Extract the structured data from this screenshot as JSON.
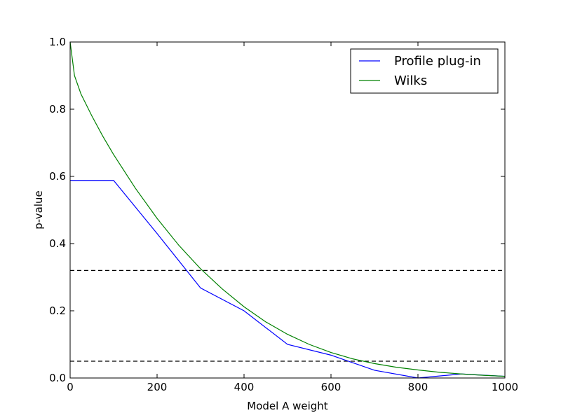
{
  "chart_data": {
    "type": "line",
    "title": "",
    "xlabel": "Model A weight",
    "ylabel": "p-value",
    "xlim": [
      0,
      1000
    ],
    "ylim": [
      0,
      1.0
    ],
    "xticks": [
      0,
      200,
      400,
      600,
      800,
      1000
    ],
    "xtick_labels": [
      "0",
      "200",
      "400",
      "600",
      "800",
      "1000"
    ],
    "yticks": [
      0,
      0.2,
      0.4,
      0.6,
      0.8,
      1.0
    ],
    "ytick_labels": [
      "0.0",
      "0.2",
      "0.4",
      "0.6",
      "0.8",
      "1.0"
    ],
    "grid": false,
    "legend_position": "top-right",
    "series": [
      {
        "name": "Profile plug-in",
        "color": "#0000ff",
        "x": [
          0,
          100,
          200,
          300,
          400,
          500,
          600,
          700,
          800,
          900,
          1000
        ],
        "y": [
          0.588,
          0.588,
          0.43,
          0.268,
          0.2,
          0.1,
          0.068,
          0.023,
          0.0,
          0.012,
          0.005
        ]
      },
      {
        "name": "Wilks",
        "color": "#008000",
        "x": [
          0,
          10,
          25,
          50,
          75,
          100,
          150,
          200,
          250,
          300,
          350,
          400,
          450,
          500,
          550,
          600,
          650,
          700,
          750,
          800,
          850,
          900,
          950,
          1000
        ],
        "y": [
          1.0,
          0.9,
          0.845,
          0.78,
          0.72,
          0.665,
          0.565,
          0.475,
          0.395,
          0.325,
          0.265,
          0.212,
          0.167,
          0.13,
          0.1,
          0.076,
          0.057,
          0.043,
          0.032,
          0.024,
          0.017,
          0.012,
          0.008,
          0.005
        ]
      }
    ],
    "reference_lines": [
      {
        "y": 0.32,
        "color": "#000000",
        "style": "dashed"
      },
      {
        "y": 0.05,
        "color": "#000000",
        "style": "dashed"
      }
    ]
  }
}
